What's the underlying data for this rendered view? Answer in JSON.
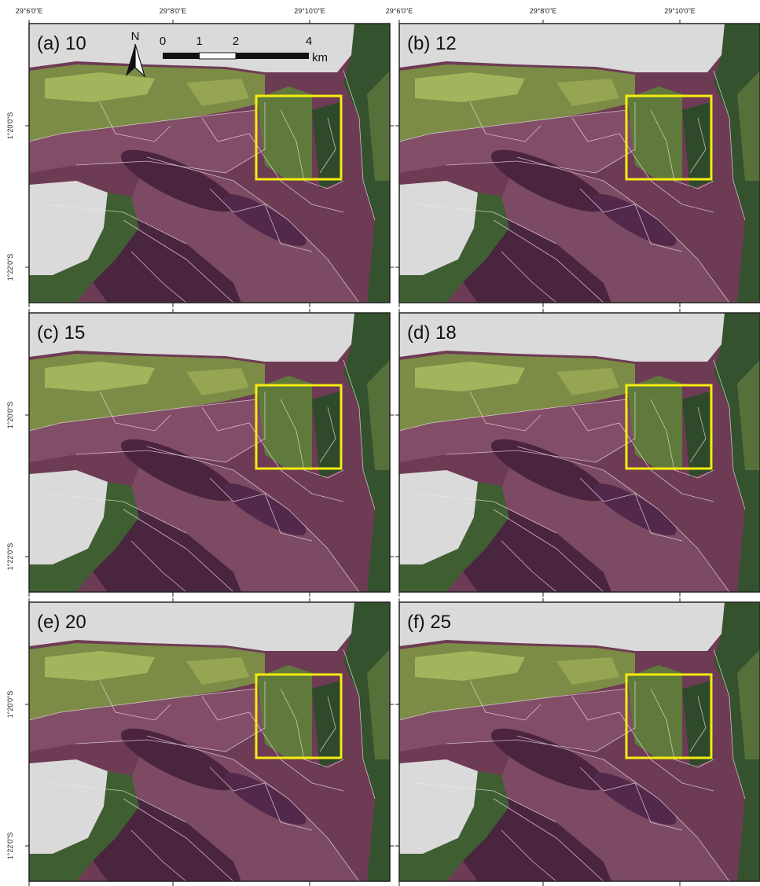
{
  "figure": {
    "panels": [
      {
        "label": "(a) 10"
      },
      {
        "label": "(b) 12"
      },
      {
        "label": "(c) 15"
      },
      {
        "label": "(d) 18"
      },
      {
        "label": "(e) 20"
      },
      {
        "label": "(f) 25"
      }
    ],
    "columns": [
      {
        "top_labels": [
          "29°6'0\"E",
          "29°8'0\"E",
          "29°10'0\"E"
        ]
      },
      {
        "top_labels": [
          "29°6'0\"E",
          "29°8'0\"E",
          "29°10'0\"E"
        ]
      }
    ],
    "rows": [
      {
        "left_labels": [
          "1°20'0\"S",
          "1°22'0\"S"
        ]
      },
      {
        "left_labels": [
          "1°20'0\"S",
          "1°22'0\"S"
        ]
      },
      {
        "left_labels": [
          "1°20'0\"S",
          "1°22'0\"S"
        ]
      }
    ],
    "north_arrow": "N",
    "scale_bar": {
      "labels": [
        "0",
        "1",
        "2",
        "4"
      ],
      "unit": "km"
    }
  }
}
